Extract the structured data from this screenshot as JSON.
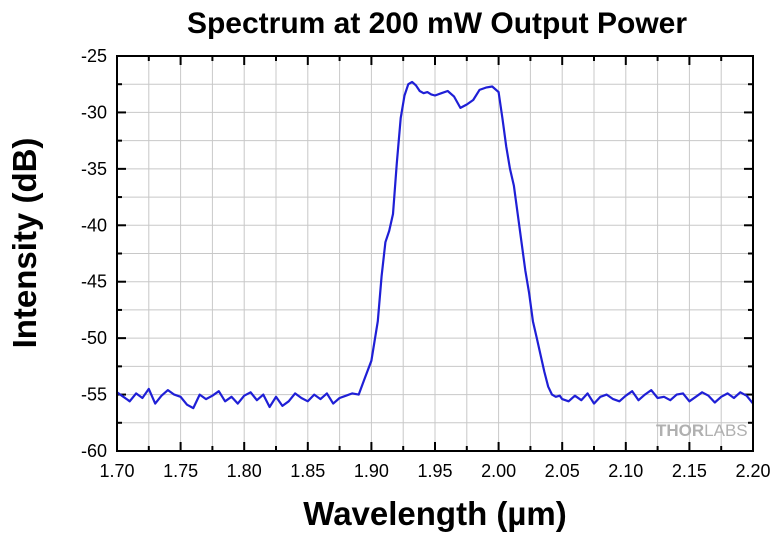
{
  "chart_data": {
    "type": "line",
    "title": "Spectrum at 200 mW Output Power",
    "xlabel": "Wavelength (µm)",
    "ylabel": "Intensity (dB)",
    "xlim": [
      1.7,
      2.2
    ],
    "ylim": [
      -60,
      -25
    ],
    "xticks": [
      "1.70",
      "1.75",
      "1.80",
      "1.85",
      "1.90",
      "1.95",
      "2.00",
      "2.05",
      "2.10",
      "2.15",
      "2.20"
    ],
    "yticks": [
      "-25",
      "-30",
      "-35",
      "-40",
      "-45",
      "-50",
      "-55",
      "-60"
    ],
    "grid": true,
    "series_color": "#1f1fd6",
    "series": [
      {
        "name": "",
        "x": [
          1.7,
          1.705,
          1.71,
          1.715,
          1.72,
          1.725,
          1.73,
          1.735,
          1.74,
          1.745,
          1.75,
          1.755,
          1.76,
          1.765,
          1.77,
          1.775,
          1.78,
          1.785,
          1.79,
          1.795,
          1.8,
          1.805,
          1.81,
          1.815,
          1.82,
          1.825,
          1.83,
          1.835,
          1.84,
          1.845,
          1.85,
          1.855,
          1.86,
          1.865,
          1.87,
          1.875,
          1.88,
          1.885,
          1.89,
          1.895,
          1.9,
          1.905,
          1.908,
          1.911,
          1.914,
          1.917,
          1.92,
          1.923,
          1.926,
          1.929,
          1.932,
          1.935,
          1.938,
          1.941,
          1.944,
          1.947,
          1.95,
          1.955,
          1.96,
          1.965,
          1.97,
          1.975,
          1.98,
          1.985,
          1.99,
          1.995,
          2.0,
          2.003,
          2.006,
          2.009,
          2.012,
          2.015,
          2.018,
          2.021,
          2.024,
          2.027,
          2.03,
          2.033,
          2.036,
          2.039,
          2.042,
          2.045,
          2.048,
          2.05,
          2.055,
          2.06,
          2.065,
          2.07,
          2.075,
          2.08,
          2.085,
          2.09,
          2.095,
          2.1,
          2.105,
          2.11,
          2.115,
          2.12,
          2.125,
          2.13,
          2.135,
          2.14,
          2.145,
          2.15,
          2.155,
          2.16,
          2.165,
          2.17,
          2.175,
          2.18,
          2.185,
          2.19,
          2.195,
          2.2
        ],
        "y": [
          -54.8,
          -55.2,
          -55.6,
          -54.9,
          -55.3,
          -54.5,
          -55.8,
          -55.1,
          -54.6,
          -55.0,
          -55.2,
          -55.9,
          -56.2,
          -55.0,
          -55.4,
          -55.1,
          -54.7,
          -55.6,
          -55.2,
          -55.8,
          -55.1,
          -54.8,
          -55.5,
          -55.0,
          -56.1,
          -55.2,
          -56.0,
          -55.6,
          -54.9,
          -55.3,
          -55.6,
          -55.0,
          -55.4,
          -54.9,
          -55.8,
          -55.3,
          -55.1,
          -54.9,
          -55.0,
          -53.5,
          -52.0,
          -48.5,
          -44.5,
          -41.5,
          -40.5,
          -39.0,
          -34.5,
          -30.5,
          -28.5,
          -27.5,
          -27.3,
          -27.6,
          -28.1,
          -28.3,
          -28.2,
          -28.4,
          -28.5,
          -28.3,
          -28.1,
          -28.6,
          -29.6,
          -29.3,
          -28.9,
          -28.0,
          -27.8,
          -27.7,
          -28.2,
          -30.5,
          -33.0,
          -35.0,
          -36.5,
          -39.0,
          -41.5,
          -44.0,
          -46.0,
          -48.5,
          -50.0,
          -51.5,
          -53.0,
          -54.3,
          -55.0,
          -55.2,
          -55.1,
          -55.4,
          -55.6,
          -55.1,
          -55.5,
          -54.9,
          -55.8,
          -55.2,
          -55.0,
          -55.4,
          -55.6,
          -55.1,
          -54.7,
          -55.5,
          -55.0,
          -54.6,
          -55.3,
          -55.2,
          -55.5,
          -55.0,
          -54.9,
          -55.6,
          -55.2,
          -54.8,
          -55.1,
          -55.7,
          -55.2,
          -54.9,
          -55.3,
          -54.8,
          -55.1,
          -55.8
        ]
      }
    ]
  },
  "watermark": {
    "text_a": "THOR",
    "text_b": "LABS"
  }
}
